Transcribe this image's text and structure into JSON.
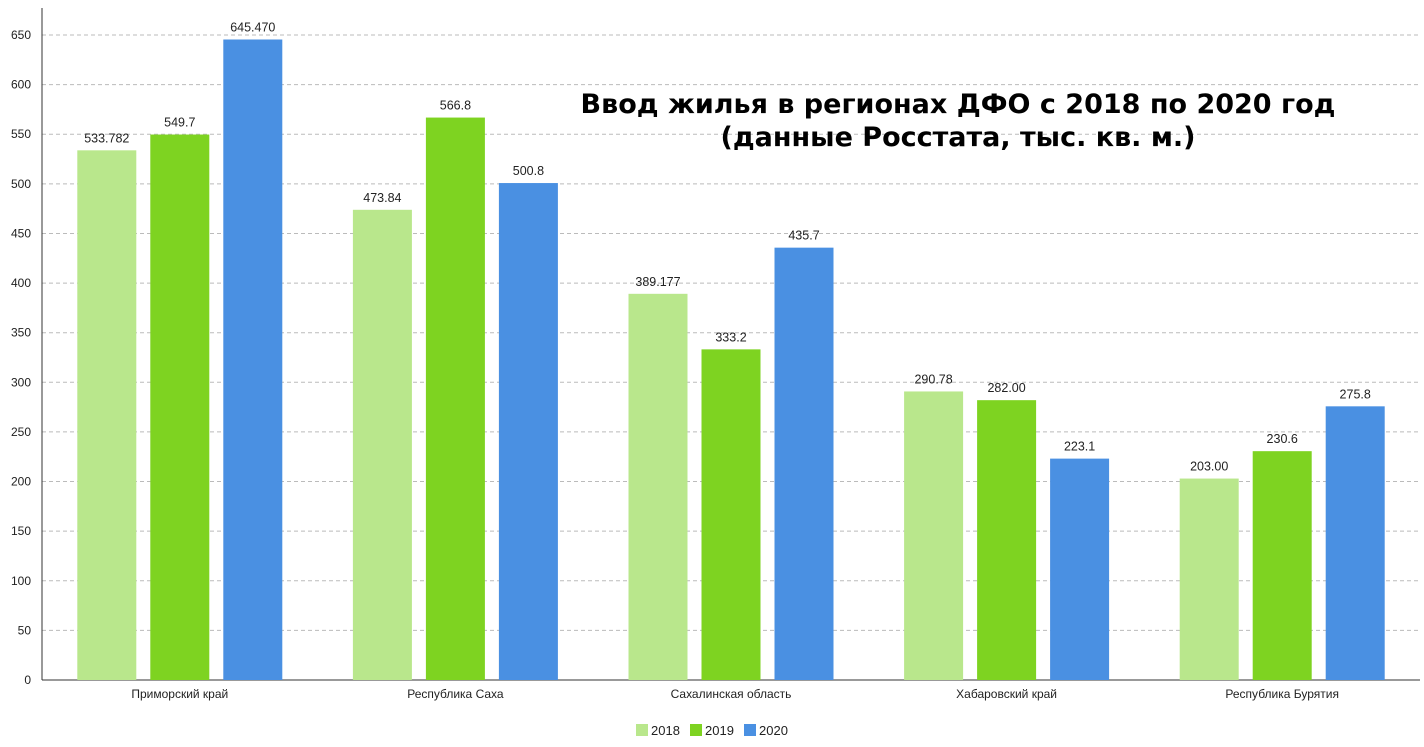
{
  "chart_data": {
    "type": "bar",
    "title_lines": [
      "Ввод жилья в регионах ДФО с 2018 по 2020 год",
      "(данные Росстата, тыс. кв. м.)"
    ],
    "categories": [
      "Приморский край",
      "Республика Саха",
      "Сахалинская область",
      "Хабаровский край",
      "Республика Бурятия"
    ],
    "series": [
      {
        "name": "2018",
        "color": "#b9e78c",
        "values": [
          533.782,
          473.84,
          389.177,
          290.78,
          203.0
        ],
        "labels": [
          "533.782",
          "473.84",
          "389.177",
          "290.78",
          "203.00"
        ]
      },
      {
        "name": "2019",
        "color": "#7ed321",
        "values": [
          549.7,
          566.8,
          333.2,
          282.0,
          230.6
        ],
        "labels": [
          "549.7",
          "566.8",
          "333.2",
          "282.00",
          "230.6"
        ]
      },
      {
        "name": "2020",
        "color": "#4a90e2",
        "values": [
          645.47,
          500.8,
          435.7,
          223.1,
          275.8
        ],
        "labels": [
          "645.470",
          "500.8",
          "435.7",
          "223.1",
          "275.8"
        ]
      }
    ],
    "ylim": [
      0,
      650
    ],
    "yticks": [
      0,
      50,
      100,
      150,
      200,
      250,
      300,
      350,
      400,
      450,
      500,
      550,
      600,
      650
    ],
    "grid": true,
    "legend_position": "bottom"
  }
}
